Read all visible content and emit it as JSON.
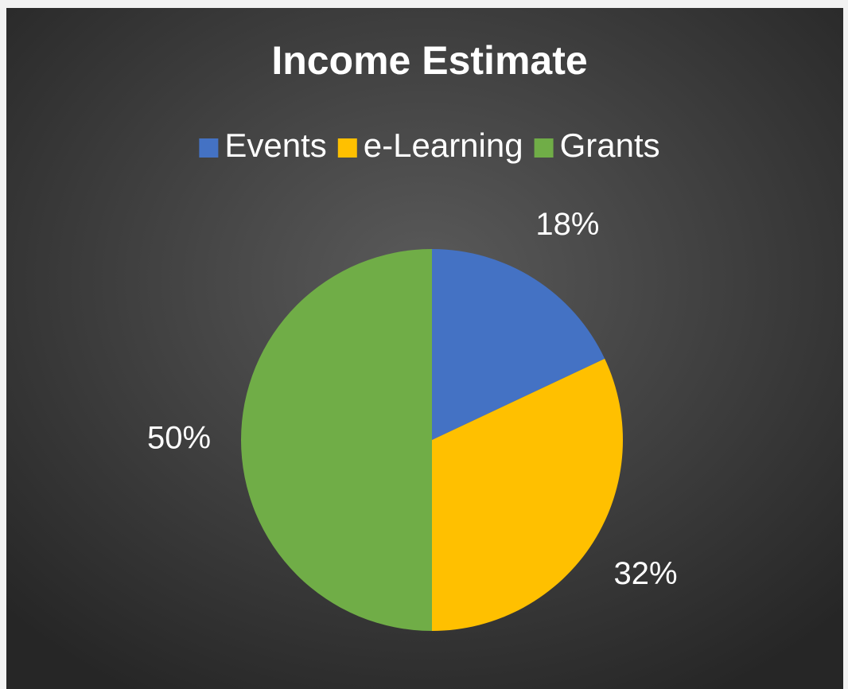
{
  "chart_data": {
    "type": "pie",
    "title": "Income Estimate",
    "categories": [
      "Events",
      "e-Learning",
      "Grants"
    ],
    "values": [
      18,
      32,
      50
    ],
    "value_labels": [
      "18%",
      "32%",
      "50%"
    ],
    "colors": [
      "#4472c4",
      "#ffc000",
      "#70ad47"
    ],
    "legend": "top"
  }
}
